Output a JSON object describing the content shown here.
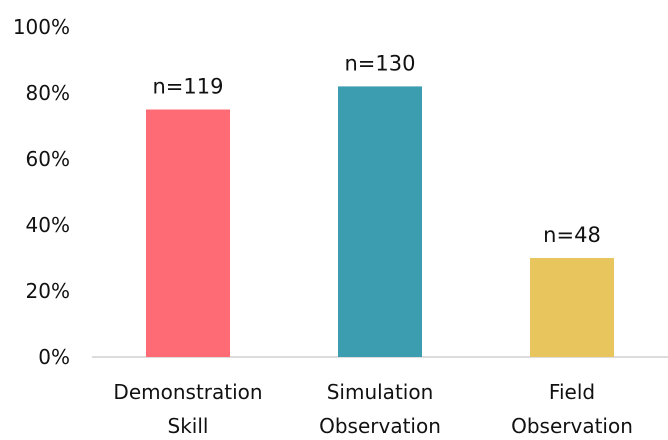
{
  "chart_data": {
    "type": "bar",
    "categories": [
      [
        "Demonstration",
        "Skill"
      ],
      [
        "Simulation",
        "Observation"
      ],
      [
        "Field",
        "Observation"
      ]
    ],
    "values": [
      75,
      82,
      30
    ],
    "data_labels": [
      "n=119",
      "n=130",
      "n=48"
    ],
    "colors": [
      "#ff6b74",
      "#3d9db0",
      "#e9c55d"
    ],
    "y_tick_labels": [
      "0%",
      "20%",
      "40%",
      "60%",
      "80%",
      "100%"
    ],
    "y_ticks": [
      0,
      20,
      40,
      60,
      80,
      100
    ],
    "ylim": [
      0,
      100
    ],
    "grid": false,
    "legend": "none"
  }
}
